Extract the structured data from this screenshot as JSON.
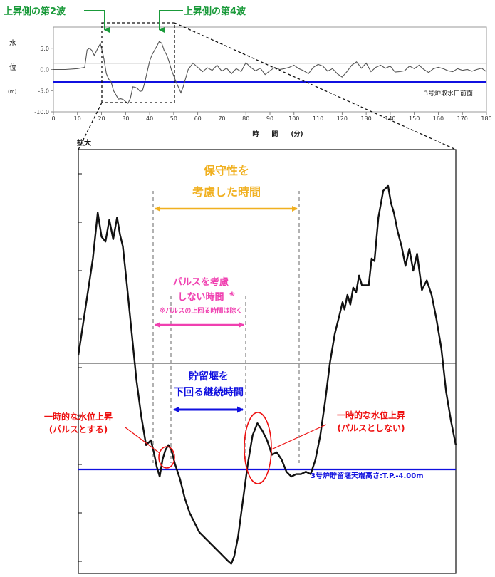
{
  "chart_data": [
    {
      "type": "line",
      "subtitle": "3号炉取水口前面",
      "ylabel_chars": [
        "水",
        "位",
        "(m)"
      ],
      "xlabel": "時　　間　　(分)",
      "xlim": [
        0,
        180
      ],
      "ylim": [
        -10,
        10
      ],
      "xticks": [
        0,
        10,
        20,
        30,
        40,
        50,
        60,
        70,
        80,
        90,
        100,
        110,
        120,
        130,
        140,
        150,
        160,
        170,
        180
      ],
      "yticks": [
        "5.0",
        "0.0",
        "-5.0",
        "-10.0"
      ],
      "threshold": -4.0,
      "series": [
        {
          "x": [
            0,
            5,
            10,
            13,
            14,
            15,
            16,
            17,
            18,
            19,
            19.5,
            20,
            21,
            22,
            23,
            24,
            25,
            26,
            27,
            28,
            29,
            30,
            31,
            32,
            33,
            34,
            35,
            36,
            37,
            38,
            39,
            40,
            41,
            42,
            43,
            44,
            45,
            46,
            47,
            48,
            49,
            50,
            51,
            52,
            53,
            54,
            55,
            56,
            58,
            60,
            62,
            64,
            66,
            68,
            70,
            72,
            74,
            76,
            78,
            80,
            82,
            84,
            86,
            88,
            90,
            92,
            94,
            96,
            98,
            100,
            102,
            104,
            106,
            108,
            110,
            112,
            114,
            116,
            118,
            120,
            122,
            124,
            126,
            128,
            130,
            132,
            134,
            136,
            138,
            140,
            142,
            144,
            146,
            148,
            150,
            152,
            154,
            156,
            158,
            160,
            162,
            164,
            166,
            168,
            170,
            172,
            174,
            176,
            178,
            180
          ],
          "y": [
            0,
            0,
            0.2,
            0.5,
            4.6,
            5.0,
            4.5,
            3.3,
            4.5,
            5.6,
            6.1,
            5.0,
            2.5,
            -1.0,
            -2.3,
            -3.0,
            -5.0,
            -6.0,
            -7.0,
            -6.9,
            -7.1,
            -7.6,
            -8.0,
            -6.8,
            -4.1,
            -4.2,
            -4.5,
            -5.2,
            -5.0,
            -3.0,
            -0.5,
            2.0,
            3.5,
            4.5,
            5.5,
            6.6,
            6.2,
            4.5,
            3.5,
            2.0,
            0.0,
            -1.5,
            -3.0,
            -4.2,
            -5.5,
            -4.0,
            -2.0,
            0.0,
            1.5,
            0.5,
            -0.5,
            0.4,
            -0.2,
            1.0,
            -0.4,
            0.3,
            -1.0,
            0.2,
            -0.5,
            1.6,
            0.5,
            -0.3,
            0.3,
            -1.2,
            -0.3,
            0.5,
            0.0,
            0.2,
            0.5,
            1.0,
            0.2,
            -0.3,
            -1.0,
            0.5,
            1.2,
            0.8,
            -0.4,
            0.2,
            -1.0,
            -1.8,
            -0.5,
            1.0,
            1.8,
            0.3,
            1.5,
            -0.5,
            0.5,
            1.0,
            0.3,
            0.8,
            -0.6,
            -0.5,
            -0.3,
            0.8,
            0.2,
            1.0,
            0.0,
            -0.7,
            0.2,
            0.5,
            0.2,
            -0.3,
            -0.5,
            0.2,
            -0.2,
            0.0,
            -0.4,
            0.0,
            0.3,
            -0.5
          ]
        }
      ]
    },
    {
      "type": "line",
      "title": "拡大",
      "xlim": [
        14,
        53
      ],
      "ylim": [
        -8.5,
        9
      ],
      "threshold": -4.0,
      "threshold_label": "3号炉貯留堰天端高さ:T.P.-4.00m",
      "series": [
        {
          "x": [
            14,
            15.5,
            16.0,
            16.4,
            16.8,
            17.2,
            17.6,
            18.0,
            18.3,
            18.6,
            19.0,
            19.5,
            20.0,
            20.5,
            21.0,
            21.5,
            21.8,
            22.1,
            22.4,
            22.7,
            23.0,
            23.3,
            23.6,
            24.0,
            24.5,
            25.0,
            25.5,
            26.0,
            26.5,
            27.0,
            27.5,
            28.0,
            28.5,
            29.0,
            29.5,
            29.8,
            30.1,
            30.5,
            31.0,
            31.5,
            32.0,
            32.5,
            33.0,
            33.5,
            34.0,
            34.5,
            35.0,
            35.5,
            36.0,
            36.5,
            37.0,
            37.5,
            38.0,
            38.5,
            39.0,
            39.5,
            40.0,
            40.5,
            41.0,
            41.3,
            41.5,
            41.8,
            42.1,
            42.4,
            42.7,
            43.0,
            43.3,
            43.6,
            44.0,
            44.3,
            44.6,
            45.0,
            45.5,
            46.0,
            46.3,
            46.6,
            47.0,
            47.4,
            47.8,
            48.2,
            48.6,
            49.0,
            49.5,
            50.0,
            50.5,
            51.0,
            51.5,
            52.0,
            52.5,
            53.0
          ],
          "y": [
            0.5,
            4.5,
            6.4,
            5.4,
            5.2,
            6.1,
            5.3,
            6.2,
            5.5,
            5.0,
            3.5,
            1.5,
            -0.5,
            -2.0,
            -3.2,
            -3.0,
            -3.5,
            -4.1,
            -4.5,
            -3.8,
            -3.4,
            -3.2,
            -3.4,
            -4.0,
            -4.6,
            -5.4,
            -6.0,
            -6.4,
            -6.8,
            -7.0,
            -7.2,
            -7.4,
            -7.6,
            -7.8,
            -8.0,
            -8.1,
            -7.8,
            -7.0,
            -5.5,
            -4.0,
            -2.8,
            -2.3,
            -2.6,
            -3.0,
            -3.6,
            -3.5,
            -3.8,
            -4.3,
            -4.5,
            -4.4,
            -4.4,
            -4.3,
            -4.4,
            -3.8,
            -2.8,
            -1.4,
            0.2,
            1.4,
            2.2,
            2.7,
            2.4,
            3.0,
            2.6,
            3.3,
            3.1,
            3.8,
            3.4,
            3.4,
            3.4,
            4.5,
            4.4,
            6.2,
            7.3,
            7.5,
            6.8,
            6.4,
            5.6,
            5.0,
            4.2,
            4.9,
            4.0,
            4.7,
            3.2,
            3.6,
            3.0,
            2.0,
            0.8,
            -1.0,
            -2.2,
            -3.2
          ]
        }
      ]
    }
  ],
  "annotations": {
    "wave2": "上昇側の第2波",
    "wave4": "上昇側の第4波",
    "conservative": [
      "保守性を",
      "考慮した時間"
    ],
    "no_pulse": [
      "パルスを考慮",
      "しない時間"
    ],
    "no_pulse_mark": "※",
    "no_pulse_note": "※パルスの上回る時間は除く",
    "below_weir": [
      "貯留堰を",
      "下回る継続時間"
    ],
    "rise_left": [
      "一時的な水位上昇",
      "(パルスとする)"
    ],
    "rise_right": [
      "一時的な水位上昇",
      "(パルスとしない)"
    ]
  },
  "colors": {
    "green": "#1a9a3a",
    "orange": "#f0b020",
    "magenta": "#f040b0",
    "blue": "#1010e0",
    "red": "#ee1111",
    "threshold": "#1010e0"
  }
}
